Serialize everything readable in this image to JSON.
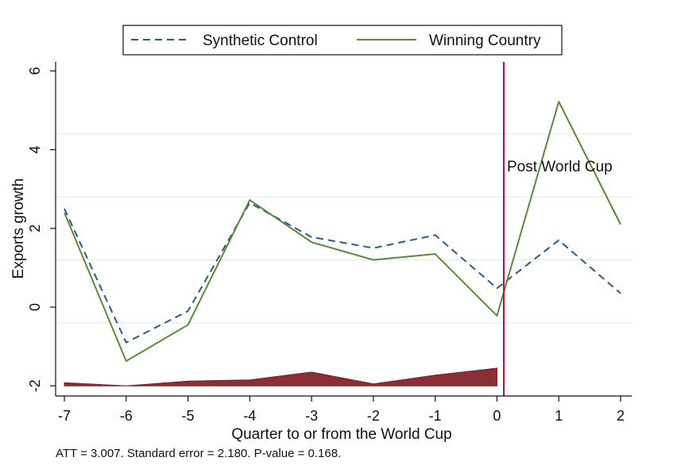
{
  "chart_data": {
    "type": "line",
    "title": "",
    "xlabel": "Quarter to or from the World Cup",
    "ylabel": "Exports growth",
    "x": [
      -7,
      -6,
      -5,
      -4,
      -3,
      -2,
      -1,
      0,
      1,
      2
    ],
    "xlim": [
      -7,
      2
    ],
    "ylim": [
      -2,
      6
    ],
    "xticks": [
      "-7",
      "-6",
      "-5",
      "-4",
      "-3",
      "-2",
      "-1",
      "0",
      "1",
      "2"
    ],
    "yticks": [
      "-2",
      "0",
      "2",
      "4",
      "6"
    ],
    "series": [
      {
        "name": "Synthetic Control",
        "style": "dashed",
        "color": "#2c5a86",
        "values": [
          2.5,
          -0.9,
          -0.1,
          2.65,
          1.78,
          1.5,
          1.83,
          0.48,
          1.7,
          0.35
        ]
      },
      {
        "name": "Winning Country",
        "style": "solid",
        "color": "#5a8a3a",
        "values": [
          2.4,
          -1.37,
          -0.45,
          2.72,
          1.65,
          1.2,
          1.35,
          -0.22,
          5.22,
          2.1
        ]
      }
    ],
    "area": {
      "color": "#8b2e35",
      "base": -2,
      "x": [
        -7,
        -6,
        -5,
        -4,
        -3,
        -2,
        -1,
        0
      ],
      "values": [
        -1.92,
        -2.0,
        -1.88,
        -1.85,
        -1.65,
        -1.95,
        -1.73,
        -1.55
      ]
    },
    "vline": {
      "x": 0.1,
      "color": "#c0103a",
      "label": "Post World Cup"
    },
    "grid_y": [
      -0.4,
      1.2,
      2.8,
      4.4
    ],
    "grid": true,
    "legend_position": "top"
  },
  "note": "ATT = 3.007. Standard error = 2.180. P-value = 0.168."
}
